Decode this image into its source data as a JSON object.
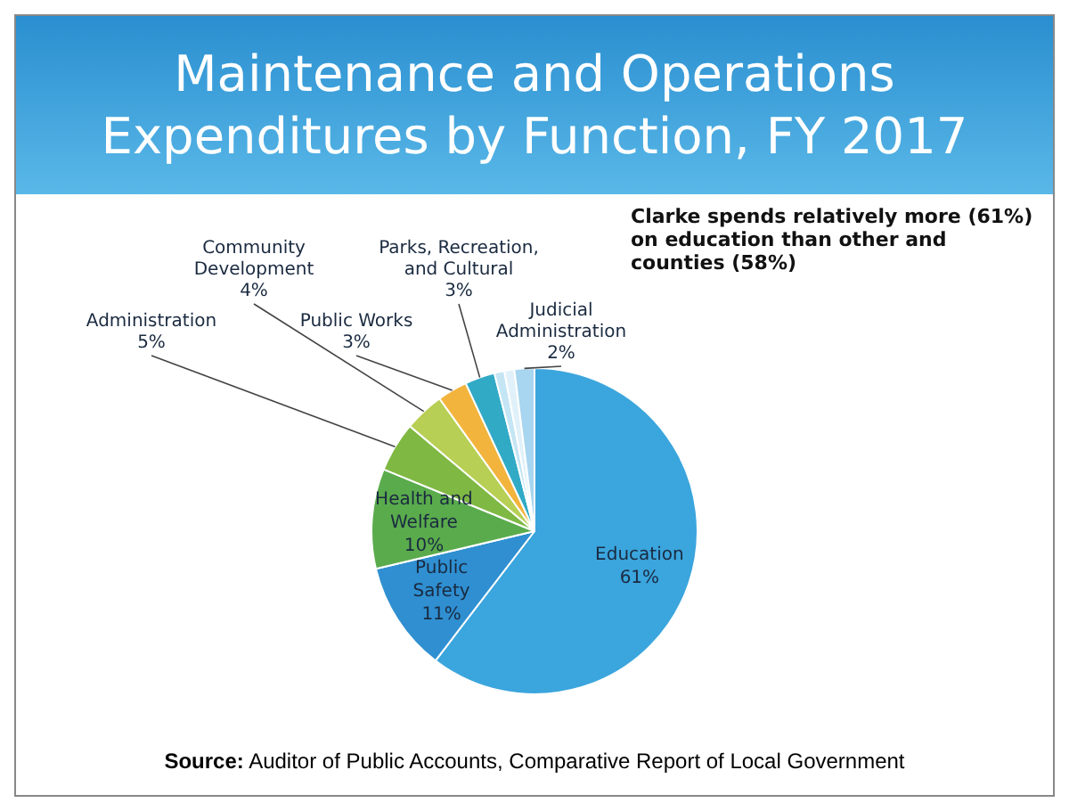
{
  "chart_data": {
    "type": "pie",
    "title": "Maintenance and Operations Expenditures by Function, FY 2017",
    "categories": [
      "Education",
      "Public Safety",
      "Health and Welfare",
      "Administration",
      "Community Development",
      "Public Works",
      "Parks, Recreation, and Cultural",
      null,
      null,
      "Judicial Administration"
    ],
    "values": [
      61,
      11,
      10,
      5,
      4,
      3,
      3,
      1,
      1,
      2
    ],
    "value_labels": [
      "61%",
      "11%",
      "10%",
      "5%",
      "4%",
      "3%",
      "3%",
      null,
      null,
      "2%"
    ],
    "colors": [
      "#3ba5dd",
      "#2f8fd1",
      "#5aab4c",
      "#7fb843",
      "#b6cf54",
      "#f2b43c",
      "#31aac6",
      "#c4e5f4",
      "#e0f1f9",
      "#a8d5ef"
    ],
    "legend": false,
    "annotations": [
      "Clarke spends relatively more (61%) on education than other and counties (58%)",
      "Source: Auditor of Public Accounts, Comparative Report of Local Government"
    ]
  }
}
